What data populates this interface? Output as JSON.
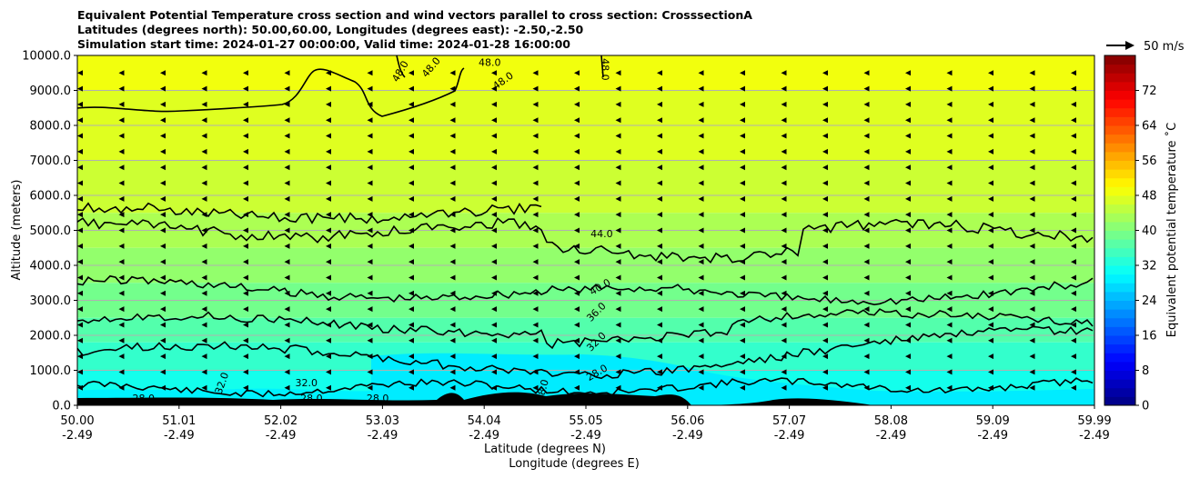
{
  "chart_data": {
    "type": "contourf",
    "title_lines": [
      "Equivalent Potential Temperature cross section and wind vectors parallel to cross section: CrosssectionA",
      "Latitudes (degrees north): 50.00,60.00, Longitudes (degrees east): -2.50,-2.50",
      "Simulation start time: 2024-01-27 00:00:00, Valid time: 2024-01-28 16:00:00"
    ],
    "ylabel": "Altitude (meters)",
    "xlabel_lat": "Latitude (degrees N)",
    "xlabel_lon": "Longitude (degrees E)",
    "ylim": [
      0,
      10000
    ],
    "yticks": [
      0,
      1000,
      2000,
      3000,
      4000,
      5000,
      6000,
      7000,
      8000,
      9000,
      10000
    ],
    "ytick_labels": [
      "0.0",
      "1000.0",
      "2000.0",
      "3000.0",
      "4000.0",
      "5000.0",
      "6000.0",
      "7000.0",
      "8000.0",
      "9000.0",
      "10000.0"
    ],
    "xticks": [
      {
        "lat": "50.00",
        "lon": "-2.49"
      },
      {
        "lat": "51.01",
        "lon": "-2.49"
      },
      {
        "lat": "52.02",
        "lon": "-2.49"
      },
      {
        "lat": "53.03",
        "lon": "-2.49"
      },
      {
        "lat": "54.04",
        "lon": "-2.49"
      },
      {
        "lat": "55.05",
        "lon": "-2.49"
      },
      {
        "lat": "56.06",
        "lon": "-2.49"
      },
      {
        "lat": "57.07",
        "lon": "-2.49"
      },
      {
        "lat": "58.08",
        "lon": "-2.49"
      },
      {
        "lat": "59.09",
        "lon": "-2.49"
      },
      {
        "lat": "59.99",
        "lon": "-2.49"
      }
    ],
    "grid": "horizontal",
    "contour_levels": [
      28.0,
      32.0,
      36.0,
      40.0,
      44.0,
      48.0
    ],
    "contour_labels": [
      {
        "text": "44.0",
        "lat": 55.15,
        "alt": 4800,
        "angle": 0
      },
      {
        "text": "40.0",
        "lat": 55.15,
        "alt": 3300,
        "angle": -30
      },
      {
        "text": "36.0",
        "lat": 55.12,
        "alt": 2600,
        "angle": -45
      },
      {
        "text": "32.0",
        "lat": 55.12,
        "alt": 1750,
        "angle": -45
      },
      {
        "text": "28.0",
        "lat": 55.12,
        "alt": 850,
        "angle": -30
      },
      {
        "text": "48.0",
        "lat": 53.2,
        "alt": 9500,
        "angle": -60
      },
      {
        "text": "48.0",
        "lat": 53.5,
        "alt": 9600,
        "angle": -50
      },
      {
        "text": "48.0",
        "lat": 54.05,
        "alt": 9700,
        "angle": 0
      },
      {
        "text": "48.0",
        "lat": 54.2,
        "alt": 9200,
        "angle": -35
      },
      {
        "text": "48.0",
        "lat": 55.15,
        "alt": 9600,
        "angle": 90
      },
      {
        "text": "32.0",
        "lat": 51.45,
        "alt": 600,
        "angle": -70
      },
      {
        "text": "32.0",
        "lat": 52.25,
        "alt": 550,
        "angle": 0
      },
      {
        "text": "28.0",
        "lat": 50.65,
        "alt": 100,
        "angle": 0
      },
      {
        "text": "28.0",
        "lat": 52.3,
        "alt": 100,
        "angle": 0
      },
      {
        "text": "28.0",
        "lat": 52.95,
        "alt": 100,
        "angle": 0
      },
      {
        "text": "28.0",
        "lat": 54.6,
        "alt": 400,
        "angle": -75
      }
    ],
    "wind_reference": {
      "label": "50 m/s",
      "speed": 50
    },
    "wind_direction": "leftward (southward)",
    "colorbar": {
      "label": "Equivalent potential temperature ˚C",
      "range": [
        0,
        80
      ],
      "ticks": [
        0,
        8,
        16,
        24,
        32,
        40,
        48,
        56,
        64,
        72
      ],
      "tick_labels": [
        "0",
        "8",
        "16",
        "24",
        "32",
        "40",
        "48",
        "56",
        "64",
        "72"
      ]
    }
  }
}
